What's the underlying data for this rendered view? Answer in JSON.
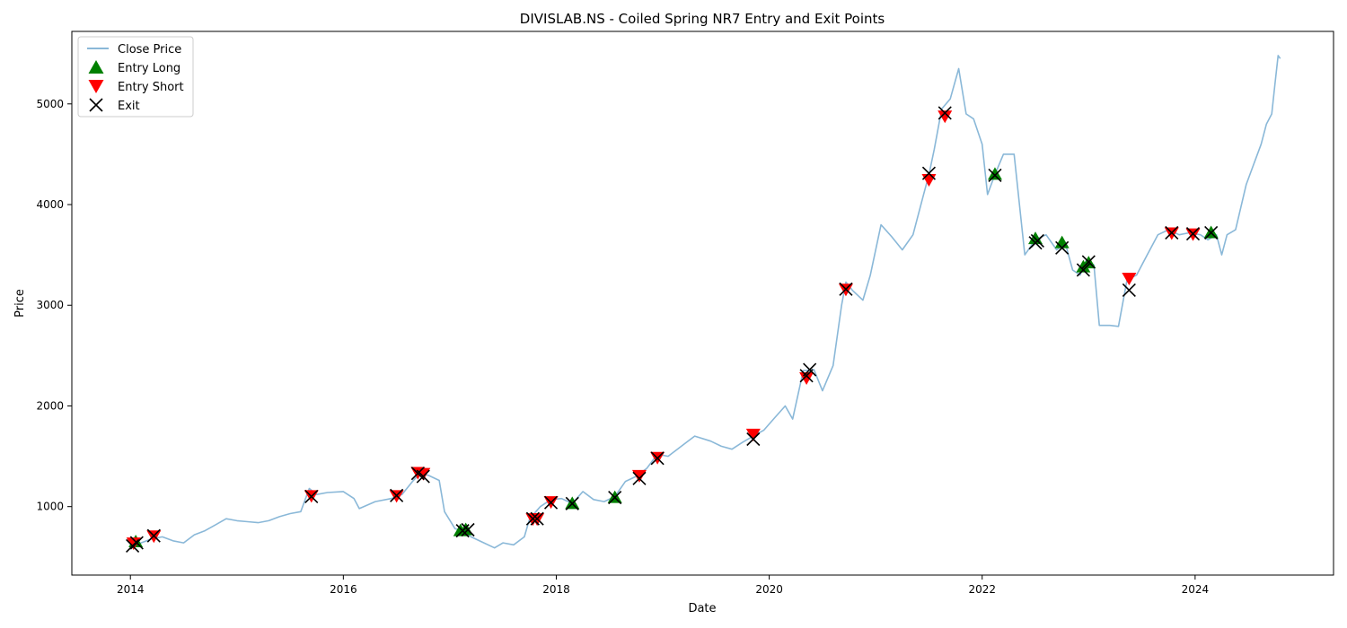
{
  "chart_data": {
    "type": "line",
    "title": "DIVISLAB.NS - Coiled Spring NR7 Entry and Exit Points",
    "xlabel": "Date",
    "ylabel": "Price",
    "xlim": [
      2013.45,
      2025.3
    ],
    "ylim": [
      320,
      5720
    ],
    "x_ticks": [
      2014,
      2016,
      2018,
      2020,
      2022,
      2024
    ],
    "x_tick_labels": [
      "2014",
      "2016",
      "2018",
      "2020",
      "2022",
      "2024"
    ],
    "y_ticks": [
      1000,
      2000,
      3000,
      4000,
      5000
    ],
    "y_tick_labels": [
      "1000",
      "2000",
      "3000",
      "4000",
      "5000"
    ],
    "grid": false,
    "legend_position": "top-left",
    "series": [
      {
        "name": "Close Price",
        "color": "#8ab8d8",
        "points": [
          [
            2014.0,
            600
          ],
          [
            2014.1,
            640
          ],
          [
            2014.2,
            680
          ],
          [
            2014.3,
            700
          ],
          [
            2014.4,
            660
          ],
          [
            2014.5,
            640
          ],
          [
            2014.6,
            720
          ],
          [
            2014.7,
            760
          ],
          [
            2014.8,
            820
          ],
          [
            2014.9,
            880
          ],
          [
            2015.0,
            860
          ],
          [
            2015.1,
            850
          ],
          [
            2015.2,
            840
          ],
          [
            2015.3,
            860
          ],
          [
            2015.4,
            900
          ],
          [
            2015.5,
            930
          ],
          [
            2015.6,
            950
          ],
          [
            2015.68,
            1180
          ],
          [
            2015.75,
            1120
          ],
          [
            2015.85,
            1140
          ],
          [
            2016.0,
            1150
          ],
          [
            2016.1,
            1080
          ],
          [
            2016.15,
            980
          ],
          [
            2016.3,
            1050
          ],
          [
            2016.45,
            1080
          ],
          [
            2016.55,
            1120
          ],
          [
            2016.65,
            1250
          ],
          [
            2016.72,
            1330
          ],
          [
            2016.8,
            1310
          ],
          [
            2016.9,
            1260
          ],
          [
            2016.95,
            950
          ],
          [
            2017.05,
            780
          ],
          [
            2017.12,
            760
          ],
          [
            2017.2,
            700
          ],
          [
            2017.3,
            650
          ],
          [
            2017.42,
            590
          ],
          [
            2017.5,
            640
          ],
          [
            2017.6,
            620
          ],
          [
            2017.7,
            700
          ],
          [
            2017.75,
            880
          ],
          [
            2017.85,
            1000
          ],
          [
            2017.95,
            1070
          ],
          [
            2018.05,
            1080
          ],
          [
            2018.15,
            1030
          ],
          [
            2018.25,
            1150
          ],
          [
            2018.35,
            1070
          ],
          [
            2018.45,
            1050
          ],
          [
            2018.55,
            1100
          ],
          [
            2018.65,
            1250
          ],
          [
            2018.75,
            1300
          ],
          [
            2018.85,
            1380
          ],
          [
            2018.95,
            1520
          ],
          [
            2019.05,
            1500
          ],
          [
            2019.15,
            1580
          ],
          [
            2019.3,
            1700
          ],
          [
            2019.45,
            1650
          ],
          [
            2019.55,
            1600
          ],
          [
            2019.65,
            1570
          ],
          [
            2019.75,
            1640
          ],
          [
            2019.85,
            1700
          ],
          [
            2019.95,
            1760
          ],
          [
            2020.05,
            1880
          ],
          [
            2020.15,
            2000
          ],
          [
            2020.22,
            1870
          ],
          [
            2020.32,
            2350
          ],
          [
            2020.42,
            2360
          ],
          [
            2020.5,
            2150
          ],
          [
            2020.6,
            2400
          ],
          [
            2020.68,
            3000
          ],
          [
            2020.72,
            3230
          ],
          [
            2020.78,
            3150
          ],
          [
            2020.88,
            3050
          ],
          [
            2020.95,
            3300
          ],
          [
            2021.05,
            3800
          ],
          [
            2021.15,
            3680
          ],
          [
            2021.25,
            3550
          ],
          [
            2021.35,
            3700
          ],
          [
            2021.45,
            4100
          ],
          [
            2021.5,
            4300
          ],
          [
            2021.55,
            4550
          ],
          [
            2021.62,
            4950
          ],
          [
            2021.7,
            5050
          ],
          [
            2021.78,
            5350
          ],
          [
            2021.85,
            4900
          ],
          [
            2021.92,
            4850
          ],
          [
            2022.0,
            4600
          ],
          [
            2022.05,
            4100
          ],
          [
            2022.12,
            4300
          ],
          [
            2022.2,
            4500
          ],
          [
            2022.3,
            4500
          ],
          [
            2022.4,
            3500
          ],
          [
            2022.5,
            3650
          ],
          [
            2022.6,
            3700
          ],
          [
            2022.7,
            3550
          ],
          [
            2022.78,
            3620
          ],
          [
            2022.85,
            3350
          ],
          [
            2022.92,
            3300
          ],
          [
            2022.98,
            3450
          ],
          [
            2023.05,
            3400
          ],
          [
            2023.1,
            2800
          ],
          [
            2023.2,
            2800
          ],
          [
            2023.28,
            2790
          ],
          [
            2023.36,
            3250
          ],
          [
            2023.45,
            3300
          ],
          [
            2023.55,
            3500
          ],
          [
            2023.65,
            3700
          ],
          [
            2023.75,
            3750
          ],
          [
            2023.85,
            3700
          ],
          [
            2023.95,
            3720
          ],
          [
            2024.05,
            3700
          ],
          [
            2024.12,
            3650
          ],
          [
            2024.2,
            3700
          ],
          [
            2024.25,
            3500
          ],
          [
            2024.3,
            3700
          ],
          [
            2024.38,
            3750
          ],
          [
            2024.48,
            4200
          ],
          [
            2024.55,
            4400
          ],
          [
            2024.62,
            4600
          ],
          [
            2024.67,
            4800
          ],
          [
            2024.72,
            4900
          ],
          [
            2024.75,
            5200
          ],
          [
            2024.78,
            5480
          ],
          [
            2024.8,
            5450
          ]
        ]
      },
      {
        "name": "Entry Long",
        "color": "#008000",
        "marker": "triangle-up",
        "points": [
          [
            2014.05,
            650
          ],
          [
            2017.1,
            760
          ],
          [
            2017.15,
            770
          ],
          [
            2018.15,
            1030
          ],
          [
            2018.55,
            1090
          ],
          [
            2022.12,
            4300
          ],
          [
            2022.5,
            3660
          ],
          [
            2022.75,
            3620
          ],
          [
            2022.95,
            3380
          ],
          [
            2023.0,
            3420
          ],
          [
            2024.15,
            3720
          ]
        ]
      },
      {
        "name": "Entry Short",
        "color": "#ff0000",
        "marker": "triangle-down",
        "points": [
          [
            2014.03,
            640
          ],
          [
            2014.22,
            710
          ],
          [
            2015.7,
            1110
          ],
          [
            2016.5,
            1110
          ],
          [
            2016.7,
            1340
          ],
          [
            2016.75,
            1330
          ],
          [
            2017.78,
            880
          ],
          [
            2017.82,
            880
          ],
          [
            2017.95,
            1050
          ],
          [
            2018.78,
            1310
          ],
          [
            2018.95,
            1490
          ],
          [
            2019.85,
            1720
          ],
          [
            2020.35,
            2280
          ],
          [
            2020.72,
            3160
          ],
          [
            2021.5,
            4250
          ],
          [
            2021.65,
            4880
          ],
          [
            2023.38,
            3270
          ],
          [
            2023.78,
            3720
          ],
          [
            2023.98,
            3710
          ]
        ]
      },
      {
        "name": "Exit",
        "color": "#000000",
        "marker": "x",
        "points": [
          [
            2014.02,
            610
          ],
          [
            2014.06,
            640
          ],
          [
            2014.22,
            710
          ],
          [
            2015.7,
            1100
          ],
          [
            2016.5,
            1110
          ],
          [
            2016.7,
            1330
          ],
          [
            2016.75,
            1300
          ],
          [
            2017.12,
            760
          ],
          [
            2017.17,
            770
          ],
          [
            2017.78,
            880
          ],
          [
            2017.82,
            880
          ],
          [
            2017.95,
            1040
          ],
          [
            2018.15,
            1030
          ],
          [
            2018.55,
            1090
          ],
          [
            2018.78,
            1280
          ],
          [
            2018.95,
            1480
          ],
          [
            2019.85,
            1670
          ],
          [
            2020.35,
            2300
          ],
          [
            2020.38,
            2360
          ],
          [
            2020.72,
            3160
          ],
          [
            2021.5,
            4310
          ],
          [
            2021.65,
            4910
          ],
          [
            2022.12,
            4290
          ],
          [
            2022.5,
            3620
          ],
          [
            2022.52,
            3640
          ],
          [
            2022.75,
            3570
          ],
          [
            2022.95,
            3350
          ],
          [
            2023.0,
            3430
          ],
          [
            2023.38,
            3150
          ],
          [
            2023.78,
            3720
          ],
          [
            2023.98,
            3710
          ],
          [
            2024.15,
            3720
          ]
        ]
      }
    ]
  }
}
